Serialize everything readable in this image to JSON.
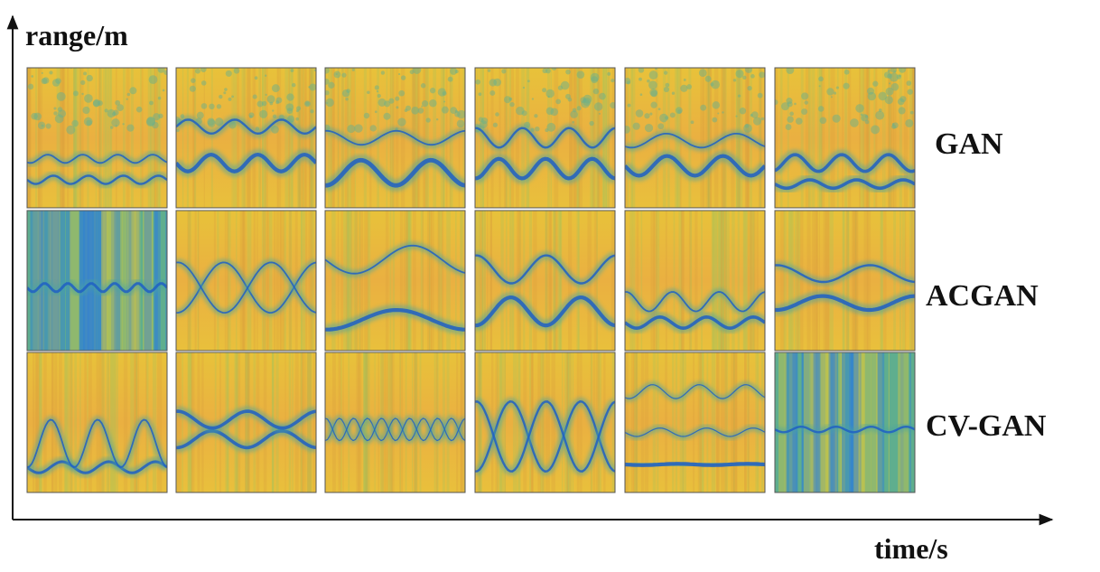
{
  "axes": {
    "y_label": "range/m",
    "x_label": "time/s"
  },
  "rows": [
    {
      "label": "GAN"
    },
    {
      "label": "ACGAN"
    },
    {
      "label": "CV-GAN"
    }
  ]
}
